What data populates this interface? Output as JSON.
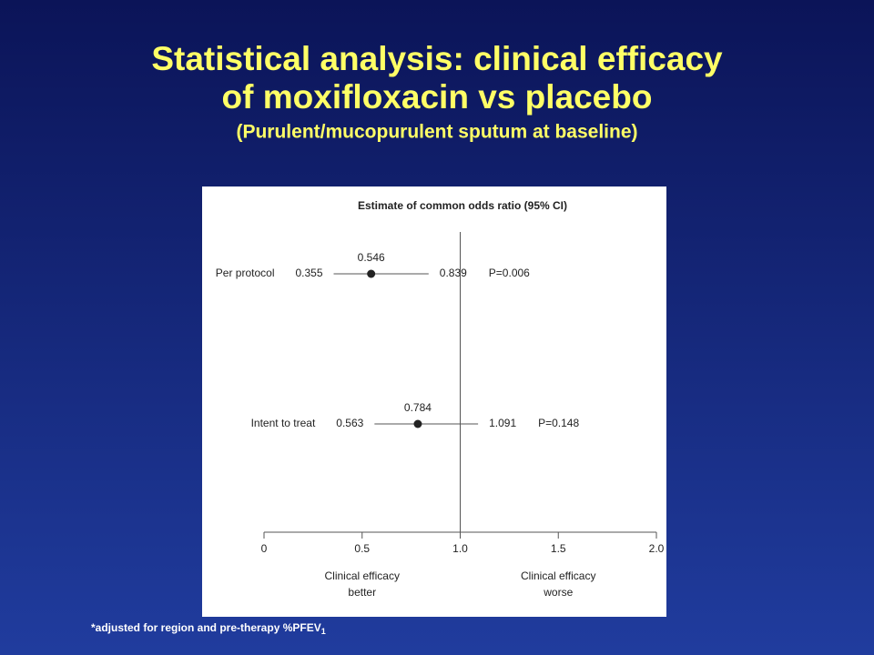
{
  "slide": {
    "title_lines": [
      "Statistical analysis: clinical efficacy",
      "of moxifloxacin vs placebo"
    ],
    "subtitle": "(Purulent/mucopurulent sputum at baseline)",
    "footnote": "*adjusted for region and pre-therapy %PFEV",
    "footnote_sub": "1"
  },
  "chart_data": {
    "type": "forest",
    "title": "Estimate of common odds ratio (95% CI)",
    "rows": [
      {
        "label": "Per protocol",
        "estimate": 0.546,
        "lower": 0.355,
        "upper": 0.839,
        "p_label": "P=0.006"
      },
      {
        "label": "Intent to treat",
        "estimate": 0.784,
        "lower": 0.563,
        "upper": 1.091,
        "p_label": "P=0.148"
      }
    ],
    "reference_line": 1,
    "xlim": [
      0,
      2
    ],
    "xticks": [
      0,
      0.5,
      {
        "value": 1,
        "label": "1.0"
      },
      1.5,
      {
        "value": 2,
        "label": "2.0"
      }
    ],
    "annotations": [
      {
        "x": 0.5,
        "lines": [
          "Clinical efficacy",
          "better"
        ]
      },
      {
        "x": 1.5,
        "lines": [
          "Clinical efficacy",
          "worse"
        ]
      }
    ],
    "color": "#222222"
  }
}
